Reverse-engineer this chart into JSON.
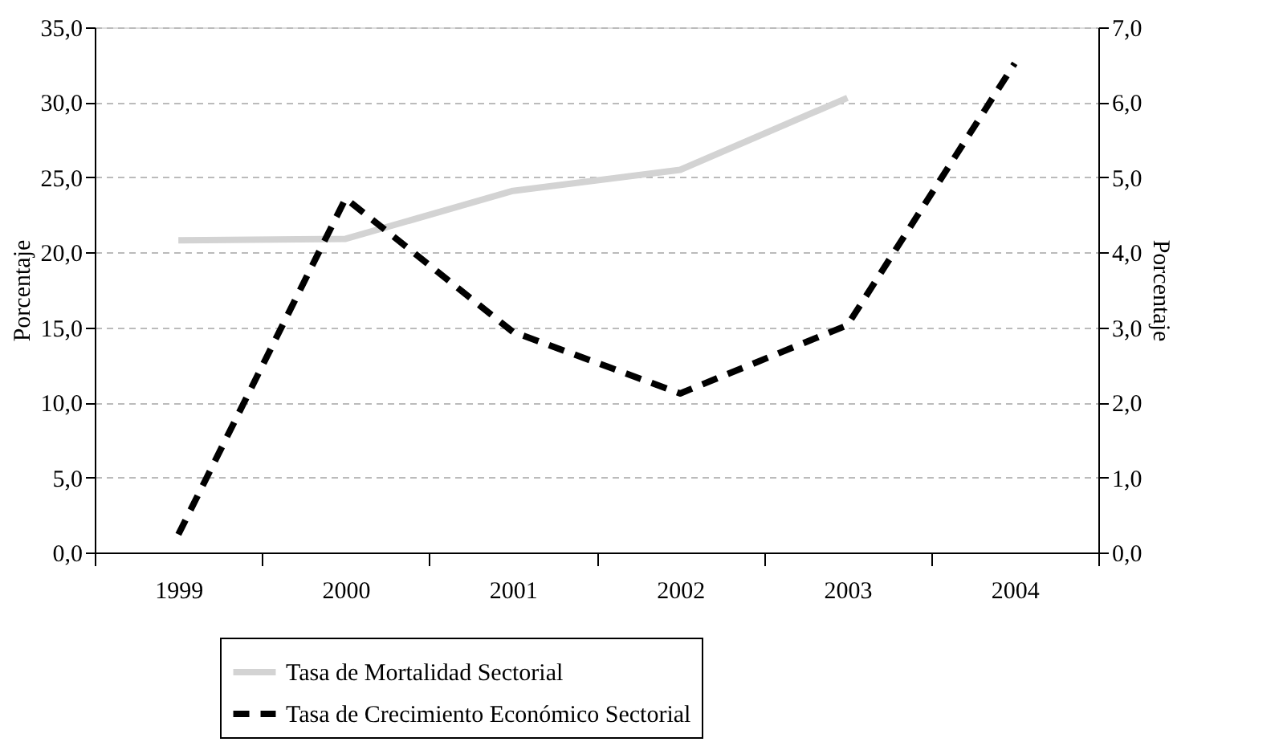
{
  "chart_data": {
    "type": "line",
    "categories": [
      "1999",
      "2000",
      "2001",
      "2002",
      "2003",
      "2004"
    ],
    "series": [
      {
        "name": "Tasa de Mortalidad Sectorial",
        "color": "#d3d3d3",
        "line_style": "solid",
        "values": [
          20.8,
          20.9,
          24.1,
          25.5,
          30.3,
          null
        ]
      },
      {
        "name": "Tasa de Crecimiento Económico Sectorial",
        "color": "#000000",
        "line_style": "dashed",
        "axis": "y2",
        "values": [
          0.24,
          4.72,
          2.94,
          2.12,
          3.03,
          6.52
        ]
      }
    ],
    "ylabel": "Porcentaje",
    "y2label": "Porcentaje",
    "ylim": [
      0,
      35
    ],
    "yticks": [
      {
        "value": 0,
        "label": "0,0"
      },
      {
        "value": 5,
        "label": "5,0"
      },
      {
        "value": 10,
        "label": "10,0"
      },
      {
        "value": 15,
        "label": "15,0"
      },
      {
        "value": 20,
        "label": "20,0"
      },
      {
        "value": 25,
        "label": "25,0"
      },
      {
        "value": 30,
        "label": "30,0"
      },
      {
        "value": 35,
        "label": "35,0"
      }
    ],
    "y2lim": [
      0,
      7
    ],
    "y2ticks": [
      {
        "value": 0,
        "label": "0,0"
      },
      {
        "value": 1,
        "label": "1,0"
      },
      {
        "value": 2,
        "label": "2,0"
      },
      {
        "value": 3,
        "label": "3,0"
      },
      {
        "value": 4,
        "label": "4,0"
      },
      {
        "value": 5,
        "label": "5,0"
      },
      {
        "value": 6,
        "label": "6,0"
      },
      {
        "value": 7,
        "label": "7,0"
      }
    ],
    "grid": "y",
    "legend": "bottom",
    "marker": "none"
  }
}
